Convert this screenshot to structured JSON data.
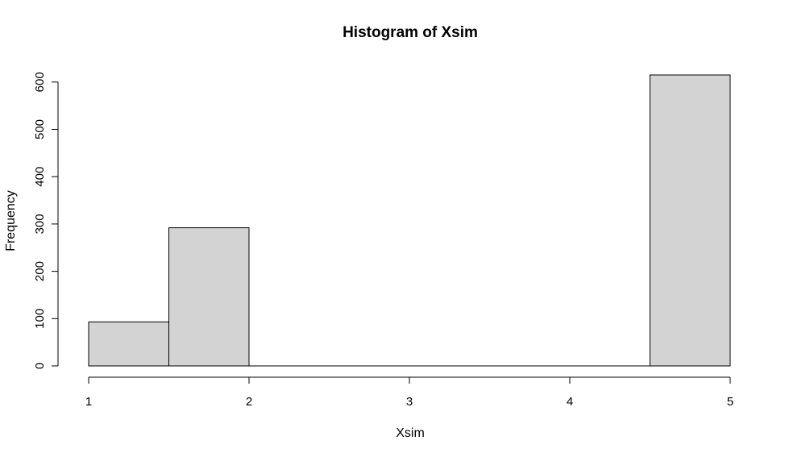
{
  "chart_data": {
    "type": "bar",
    "title": "Histogram of Xsim",
    "xlabel": "Xsim",
    "ylabel": "Frequency",
    "bins": [
      {
        "x0": 1.0,
        "x1": 1.5,
        "count": 93
      },
      {
        "x0": 1.5,
        "x1": 2.0,
        "count": 292
      },
      {
        "x0": 2.0,
        "x1": 2.5,
        "count": 0
      },
      {
        "x0": 2.5,
        "x1": 3.0,
        "count": 0
      },
      {
        "x0": 3.0,
        "x1": 3.5,
        "count": 0
      },
      {
        "x0": 3.5,
        "x1": 4.0,
        "count": 0
      },
      {
        "x0": 4.0,
        "x1": 4.5,
        "count": 0
      },
      {
        "x0": 4.5,
        "x1": 5.0,
        "count": 615
      }
    ],
    "x_ticks": [
      1,
      2,
      3,
      4,
      5
    ],
    "x_tick_labels": [
      "1",
      "2",
      "3",
      "4",
      "5"
    ],
    "y_ticks": [
      0,
      100,
      200,
      300,
      400,
      500,
      600
    ],
    "y_tick_labels": [
      "0",
      "100",
      "200",
      "300",
      "400",
      "500",
      "600"
    ],
    "xlim": [
      1,
      5
    ],
    "ylim": [
      0,
      615
    ],
    "grid": false,
    "legend": "none",
    "colors": {
      "bar_fill": "#d3d3d3",
      "bar_stroke": "#000000",
      "axis": "#000000",
      "background": "#ffffff"
    }
  }
}
